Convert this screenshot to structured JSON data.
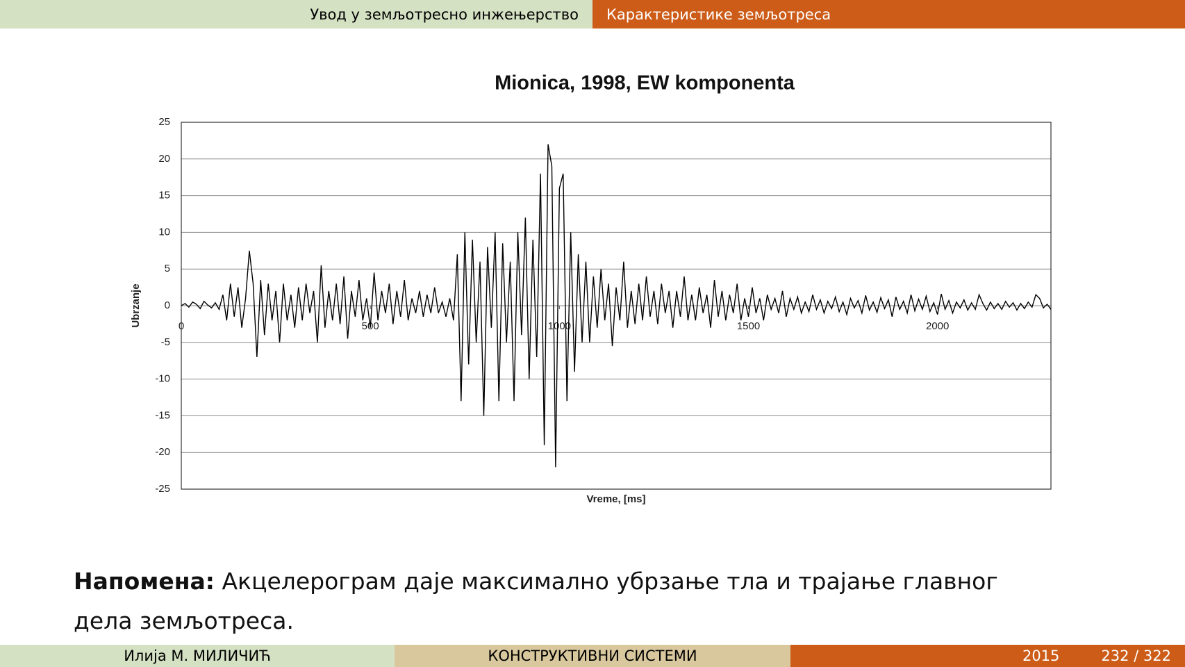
{
  "header": {
    "left": "Увод у земљотресно инжењерство",
    "right": "Карактеристике земљотреса"
  },
  "chart_data": {
    "type": "line",
    "title": "Mionica, 1998,  EW  komponenta",
    "xlabel": "Vreme, [ms]",
    "ylabel": "Ubrzanje",
    "color": "#000000",
    "grid": true,
    "xlim": [
      0,
      2300
    ],
    "xticks": [
      0,
      500,
      1000,
      1500,
      2000
    ],
    "ylim": [
      -25,
      25
    ],
    "yticks": [
      -25,
      -20,
      -15,
      -10,
      -5,
      0,
      5,
      10,
      15,
      20,
      25
    ],
    "x": [
      0,
      10,
      20,
      30,
      40,
      50,
      60,
      70,
      80,
      90,
      100,
      110,
      120,
      130,
      140,
      150,
      160,
      170,
      180,
      190,
      200,
      210,
      220,
      230,
      240,
      250,
      260,
      270,
      280,
      290,
      300,
      310,
      320,
      330,
      340,
      350,
      360,
      370,
      380,
      390,
      400,
      410,
      420,
      430,
      440,
      450,
      460,
      470,
      480,
      490,
      500,
      510,
      520,
      530,
      540,
      550,
      560,
      570,
      580,
      590,
      600,
      610,
      620,
      630,
      640,
      650,
      660,
      670,
      680,
      690,
      700,
      710,
      720,
      730,
      740,
      750,
      760,
      770,
      780,
      790,
      800,
      810,
      820,
      830,
      840,
      850,
      860,
      870,
      880,
      890,
      900,
      910,
      920,
      930,
      940,
      950,
      960,
      970,
      980,
      990,
      1000,
      1010,
      1020,
      1030,
      1040,
      1050,
      1060,
      1070,
      1080,
      1090,
      1100,
      1110,
      1120,
      1130,
      1140,
      1150,
      1160,
      1170,
      1180,
      1190,
      1200,
      1210,
      1220,
      1230,
      1240,
      1250,
      1260,
      1270,
      1280,
      1290,
      1300,
      1310,
      1320,
      1330,
      1340,
      1350,
      1360,
      1370,
      1380,
      1390,
      1400,
      1410,
      1420,
      1430,
      1440,
      1450,
      1460,
      1470,
      1480,
      1490,
      1500,
      1510,
      1520,
      1530,
      1540,
      1550,
      1560,
      1570,
      1580,
      1590,
      1600,
      1610,
      1620,
      1630,
      1640,
      1650,
      1660,
      1670,
      1680,
      1690,
      1700,
      1710,
      1720,
      1730,
      1740,
      1750,
      1760,
      1770,
      1780,
      1790,
      1800,
      1810,
      1820,
      1830,
      1840,
      1850,
      1860,
      1870,
      1880,
      1890,
      1900,
      1910,
      1920,
      1930,
      1940,
      1950,
      1960,
      1970,
      1980,
      1990,
      2000,
      2010,
      2020,
      2030,
      2040,
      2050,
      2060,
      2070,
      2080,
      2090,
      2100,
      2110,
      2120,
      2130,
      2140,
      2150,
      2160,
      2170,
      2180,
      2190,
      2200,
      2210,
      2220,
      2230,
      2240,
      2250,
      2260,
      2270,
      2280,
      2290,
      2300
    ],
    "values": [
      0,
      0.3,
      -0.2,
      0.5,
      0.2,
      -0.4,
      0.6,
      0.1,
      -0.3,
      0.4,
      -0.5,
      1.5,
      -2,
      3,
      -1.5,
      2.5,
      -3,
      1,
      7.5,
      3,
      -7,
      3.5,
      -4,
      3,
      -2,
      2,
      -5,
      3,
      -2,
      1.5,
      -3,
      2.5,
      -2,
      3,
      -1,
      2,
      -5,
      5.5,
      -3,
      2,
      -2,
      3,
      -2.5,
      4,
      -4.5,
      2,
      -1.5,
      3.5,
      -2,
      1,
      -3,
      4.5,
      -2,
      2,
      -1,
      3,
      -2.5,
      2,
      -1.5,
      3.5,
      -2,
      1,
      -1,
      2,
      -1.5,
      1.5,
      -1,
      2.5,
      -1,
      0.5,
      -1.5,
      1,
      -2,
      7,
      -13,
      10,
      -8,
      9,
      -5,
      6,
      -15,
      8,
      -3,
      10,
      -13,
      8.5,
      -5,
      6,
      -13,
      10,
      -4,
      12,
      -10,
      9,
      -7,
      18,
      -19,
      22,
      19,
      -22,
      16,
      18,
      -13,
      10,
      -9,
      7,
      -5,
      6,
      -5,
      4,
      -3,
      5,
      -2,
      3,
      -5.5,
      2.5,
      -2,
      6,
      -3,
      2,
      -2.5,
      3,
      -2,
      4,
      -1.5,
      2,
      -2.5,
      3,
      -1,
      2,
      -3,
      2,
      -1.5,
      4,
      -2,
      1.5,
      -2,
      2.5,
      -1,
      1.5,
      -3,
      3.5,
      -1.5,
      2,
      -2,
      1.5,
      -1,
      3,
      -2,
      1,
      -1.5,
      2.5,
      -1,
      1,
      -2,
      1.5,
      -0.5,
      1,
      -1,
      2,
      -1.5,
      1,
      -0.5,
      1.2,
      -1,
      0.5,
      -0.8,
      1.5,
      -0.5,
      0.8,
      -1,
      0.6,
      -0.4,
      1.2,
      -0.8,
      0.5,
      -1.2,
      1,
      -0.3,
      0.7,
      -1,
      1.4,
      -0.6,
      0.5,
      -0.9,
      1.1,
      -0.4,
      0.8,
      -1.5,
      1.2,
      -0.5,
      0.6,
      -1,
      1.5,
      -0.7,
      0.9,
      -0.5,
      1.3,
      -0.8,
      0.4,
      -1.2,
      1.6,
      -0.5,
      0.7,
      -1,
      0.5,
      -0.3,
      0.8,
      -0.6,
      0.4,
      -0.5,
      1.5,
      0.3,
      -0.6,
      0.5,
      -0.4,
      0.3,
      -0.5,
      0.6,
      -0.2,
      0.4,
      -0.6,
      0.3,
      -0.4,
      0.5,
      -0.2,
      1.5,
      1,
      -0.3,
      0.2,
      -0.5
    ]
  },
  "note": {
    "label": "Напомена:",
    "text": "Акцелерограм даје максимално убрзање тла и трајање главног дела земљотреса."
  },
  "footer": {
    "author": "Илија М. МИЛИЧИЋ",
    "title": "КОНСТРУКТИВНИ СИСТЕМИ",
    "year": "2015",
    "page": "232 / 322"
  }
}
